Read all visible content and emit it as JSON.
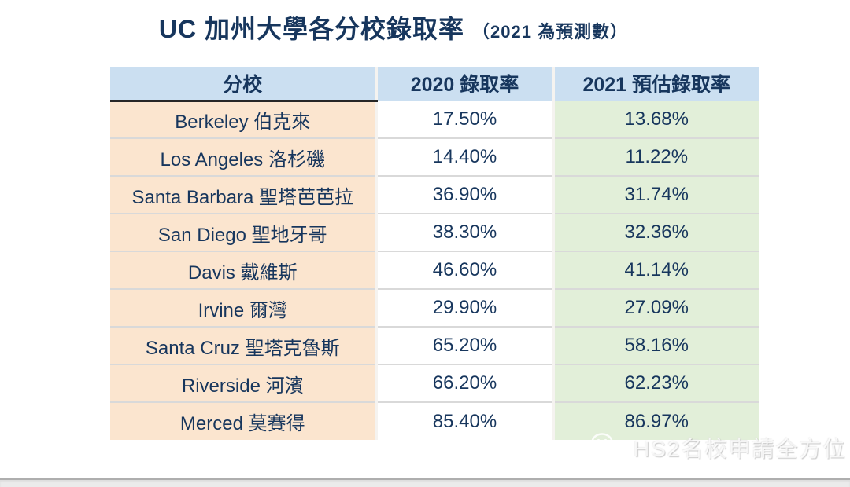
{
  "title": {
    "main": "UC 加州大學各分校錄取率",
    "sub": "（2021 為預測數）"
  },
  "watermark": {
    "label": "HS2名校申請全方位",
    "icon": "wechat-icon"
  },
  "colors": {
    "title_text": "#17365d",
    "table_text": "#17365d",
    "header_bg": "#cbdff1",
    "campus_column_bg": "#fbe5cf",
    "rate_2021_column_bg": "#e2efd9",
    "rate_2020_column_bg": "#ffffff",
    "row_separator": "#d9d9d9",
    "header_underline": "#262626"
  },
  "chart_data": {
    "type": "table",
    "title": "UC 加州大學各分校錄取率（2021 為預測數）",
    "columns": [
      "分校",
      "2020 錄取率",
      "2021 預估錄取率"
    ],
    "rows": [
      {
        "campus": "Berkeley 伯克來",
        "rate_2020": "17.50%",
        "rate_2021": "13.68%"
      },
      {
        "campus": "Los Angeles 洛杉磯",
        "rate_2020": "14.40%",
        "rate_2021": "11.22%"
      },
      {
        "campus": "Santa Barbara 聖塔芭芭拉",
        "rate_2020": "36.90%",
        "rate_2021": "31.74%"
      },
      {
        "campus": "San Diego 聖地牙哥",
        "rate_2020": "38.30%",
        "rate_2021": "32.36%"
      },
      {
        "campus": "Davis 戴維斯",
        "rate_2020": "46.60%",
        "rate_2021": "41.14%"
      },
      {
        "campus": "Irvine 爾灣",
        "rate_2020": "29.90%",
        "rate_2021": "27.09%"
      },
      {
        "campus": "Santa Cruz 聖塔克魯斯",
        "rate_2020": "65.20%",
        "rate_2021": "58.16%"
      },
      {
        "campus": "Riverside 河濱",
        "rate_2020": "66.20%",
        "rate_2021": "62.23%"
      },
      {
        "campus": "Merced 莫賽得",
        "rate_2020": "85.40%",
        "rate_2021": "86.97%"
      }
    ],
    "categories": [
      "Berkeley 伯克來",
      "Los Angeles 洛杉磯",
      "Santa Barbara 聖塔芭芭拉",
      "San Diego 聖地牙哥",
      "Davis 戴維斯",
      "Irvine 爾灣",
      "Santa Cruz 聖塔克魯斯",
      "Riverside 河濱",
      "Merced 莫賽得"
    ],
    "series": [
      {
        "name": "2020 錄取率",
        "values": [
          17.5,
          14.4,
          36.9,
          38.3,
          46.6,
          29.9,
          65.2,
          66.2,
          85.4
        ]
      },
      {
        "name": "2021 預估錄取率",
        "values": [
          13.68,
          11.22,
          31.74,
          32.36,
          41.14,
          27.09,
          58.16,
          62.23,
          86.97
        ]
      }
    ]
  }
}
